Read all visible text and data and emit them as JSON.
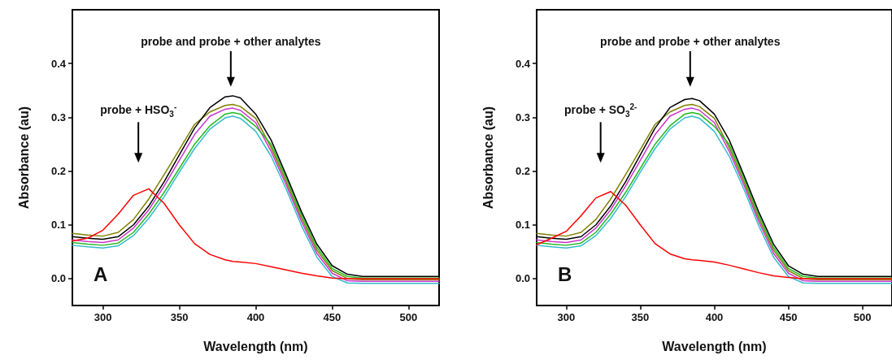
{
  "chart_data": [
    {
      "type": "line",
      "xlabel": "Wavelength (nm)",
      "ylabel": "Absorbance (au)",
      "xlim": [
        280,
        520
      ],
      "xticks": [
        300,
        350,
        400,
        450,
        500
      ],
      "ylim": [
        -0.05,
        0.5
      ],
      "yticks": [
        {
          "value": 0,
          "label": "0.0"
        },
        0.1,
        0.2,
        0.3,
        0.4
      ],
      "marker": "none",
      "line_style": "solid",
      "x": [
        280,
        290,
        300,
        310,
        320,
        330,
        340,
        350,
        360,
        370,
        380,
        385,
        390,
        400,
        410,
        420,
        430,
        440,
        450,
        460,
        470,
        480,
        490,
        500,
        510,
        520
      ],
      "series": [
        {
          "color": "#808000",
          "values": [
            0.084,
            0.081,
            0.079,
            0.086,
            0.11,
            0.148,
            0.193,
            0.24,
            0.287,
            0.31,
            0.322,
            0.324,
            0.32,
            0.298,
            0.244,
            0.18,
            0.112,
            0.053,
            0.015,
            0,
            -0.002,
            -0.002,
            -0.002,
            -0.002,
            -0.002,
            -0.002
          ]
        },
        {
          "color": "#cc33cc",
          "values": [
            0.072,
            0.069,
            0.067,
            0.072,
            0.094,
            0.128,
            0.172,
            0.22,
            0.268,
            0.302,
            0.315,
            0.317,
            0.313,
            0.29,
            0.237,
            0.174,
            0.106,
            0.047,
            0.01,
            -0.004,
            -0.005,
            -0.005,
            -0.005,
            -0.005,
            -0.005,
            -0.005
          ]
        },
        {
          "color": "#22bb22",
          "values": [
            0.067,
            0.064,
            0.062,
            0.066,
            0.086,
            0.12,
            0.16,
            0.205,
            0.25,
            0.284,
            0.306,
            0.309,
            0.306,
            0.283,
            0.25,
            0.186,
            0.118,
            0.058,
            0.019,
            0.004,
            0.001,
            0.001,
            0.001,
            0.001,
            0.001,
            0.001
          ]
        },
        {
          "color": "#33bbcc",
          "values": [
            0.062,
            0.059,
            0.057,
            0.061,
            0.08,
            0.112,
            0.152,
            0.198,
            0.242,
            0.278,
            0.299,
            0.302,
            0.298,
            0.274,
            0.228,
            0.166,
            0.098,
            0.04,
            0.004,
            -0.008,
            -0.009,
            -0.009,
            -0.009,
            -0.009,
            -0.009,
            -0.009
          ]
        },
        {
          "color": "#000000",
          "values": [
            0.078,
            0.075,
            0.073,
            0.078,
            0.1,
            0.135,
            0.18,
            0.23,
            0.28,
            0.318,
            0.338,
            0.34,
            0.336,
            0.306,
            0.258,
            0.192,
            0.124,
            0.064,
            0.024,
            0.008,
            0.004,
            0.004,
            0.004,
            0.004,
            0.004,
            0.004
          ]
        },
        {
          "color": "#ff0000",
          "values": [
            0.07,
            0.075,
            0.09,
            0.12,
            0.155,
            0.167,
            0.14,
            0.1,
            0.065,
            0.045,
            0.035,
            0.032,
            0.031,
            0.028,
            0.022,
            0.016,
            0.01,
            0.005,
            0.001,
            0,
            0,
            0,
            0,
            0,
            0,
            0
          ]
        }
      ],
      "annotations": [
        "probe and probe + other analytes",
        "probe + HSO$_{3}$$^{-}$",
        "A"
      ]
    },
    {
      "type": "line",
      "xlabel": "Wavelength (nm)",
      "ylabel": "Absorbance (au)",
      "xlim": [
        280,
        520
      ],
      "xticks": [
        300,
        350,
        400,
        450,
        500
      ],
      "ylim": [
        -0.05,
        0.5
      ],
      "yticks": [
        {
          "value": 0,
          "label": "0.0"
        },
        0.1,
        0.2,
        0.3,
        0.4
      ],
      "marker": "none",
      "line_style": "solid",
      "x": [
        280,
        290,
        300,
        310,
        320,
        330,
        340,
        350,
        360,
        370,
        380,
        385,
        390,
        400,
        410,
        420,
        430,
        440,
        450,
        460,
        470,
        480,
        490,
        500,
        510,
        520
      ],
      "series": [
        {
          "color": "#808000",
          "values": [
            0.084,
            0.081,
            0.079,
            0.086,
            0.11,
            0.148,
            0.193,
            0.24,
            0.287,
            0.31,
            0.322,
            0.324,
            0.32,
            0.298,
            0.244,
            0.18,
            0.112,
            0.053,
            0.015,
            0,
            -0.002,
            -0.002,
            -0.002,
            -0.002,
            -0.002,
            -0.002
          ]
        },
        {
          "color": "#cc33cc",
          "values": [
            0.072,
            0.069,
            0.067,
            0.072,
            0.094,
            0.128,
            0.172,
            0.22,
            0.268,
            0.302,
            0.315,
            0.317,
            0.313,
            0.29,
            0.237,
            0.174,
            0.106,
            0.047,
            0.01,
            -0.004,
            -0.005,
            -0.005,
            -0.005,
            -0.005,
            -0.005,
            -0.005
          ]
        },
        {
          "color": "#22bb22",
          "values": [
            0.067,
            0.064,
            0.062,
            0.066,
            0.086,
            0.12,
            0.16,
            0.205,
            0.25,
            0.284,
            0.306,
            0.309,
            0.306,
            0.283,
            0.25,
            0.186,
            0.118,
            0.058,
            0.019,
            0.004,
            0.001,
            0.001,
            0.001,
            0.001,
            0.001,
            0.001
          ]
        },
        {
          "color": "#33bbcc",
          "values": [
            0.062,
            0.059,
            0.057,
            0.061,
            0.08,
            0.112,
            0.152,
            0.198,
            0.242,
            0.278,
            0.299,
            0.302,
            0.298,
            0.274,
            0.228,
            0.166,
            0.098,
            0.04,
            0.004,
            -0.008,
            -0.009,
            -0.009,
            -0.009,
            -0.009,
            -0.009,
            -0.009
          ]
        },
        {
          "color": "#000000",
          "values": [
            0.078,
            0.075,
            0.073,
            0.078,
            0.1,
            0.135,
            0.18,
            0.23,
            0.28,
            0.318,
            0.333,
            0.335,
            0.331,
            0.306,
            0.258,
            0.192,
            0.124,
            0.064,
            0.024,
            0.008,
            0.004,
            0.004,
            0.004,
            0.004,
            0.004,
            0.004
          ]
        },
        {
          "color": "#ff0000",
          "values": [
            0.063,
            0.075,
            0.088,
            0.117,
            0.15,
            0.162,
            0.137,
            0.1,
            0.065,
            0.046,
            0.037,
            0.035,
            0.034,
            0.031,
            0.025,
            0.018,
            0.011,
            0.005,
            0.002,
            0,
            0,
            0,
            0,
            0,
            0,
            0
          ]
        }
      ],
      "annotations": [
        "probe and probe + other analytes",
        "probe + SO$_{3}$$^{2-}$",
        "B"
      ]
    }
  ]
}
